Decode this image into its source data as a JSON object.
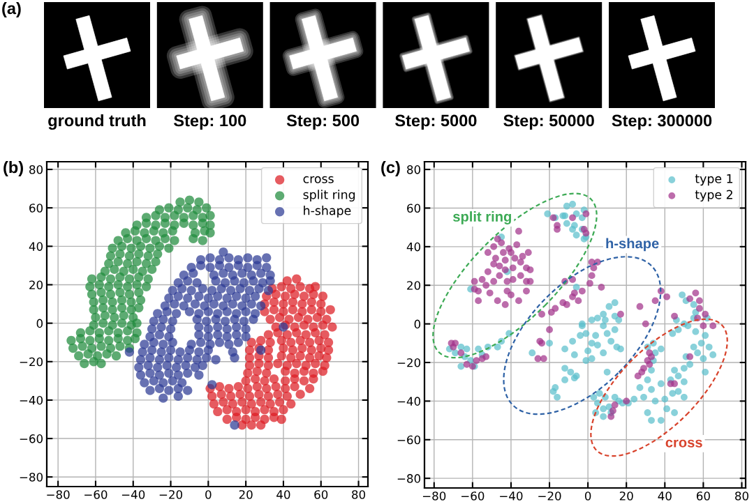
{
  "chart_data": [
    {
      "type": "other",
      "title": "(a)",
      "annotations": [
        "ground truth",
        "Step: 100",
        "Step: 500",
        "Step: 5000",
        "Step: 50000",
        "Step: 300000"
      ]
    },
    {
      "type": "scatter",
      "title": "(b)",
      "xlim": [
        -86,
        85
      ],
      "ylim": [
        -85,
        84
      ],
      "xticks": [
        -80,
        -60,
        -40,
        -20,
        0,
        20,
        40,
        60,
        80
      ],
      "yticks": [
        -80,
        -60,
        -40,
        -20,
        0,
        20,
        40,
        60,
        80
      ],
      "grid": true,
      "legend": "top right",
      "marker": "circle",
      "series": [
        {
          "name": "cross",
          "color": "#dd1c22",
          "x": [
            42,
            47,
            34,
            39,
            44,
            49,
            54,
            57,
            31,
            36,
            41,
            46,
            51,
            56,
            61,
            30,
            35,
            40,
            45,
            50,
            55,
            60,
            30,
            35,
            40,
            45,
            50,
            55,
            60,
            65,
            33,
            38,
            43,
            48,
            53,
            58,
            63,
            36,
            41,
            46,
            51,
            56,
            61,
            66,
            32,
            37,
            42,
            47,
            52,
            57,
            62,
            23,
            28,
            33,
            39,
            44,
            49,
            54,
            59,
            64,
            22,
            27,
            32,
            40,
            45,
            50,
            55,
            60,
            64,
            22,
            27,
            32,
            39,
            44,
            49,
            54,
            59,
            63,
            22,
            27,
            32,
            37,
            42,
            47,
            52,
            57,
            62,
            21,
            26,
            31,
            41,
            46,
            51,
            56,
            61,
            20,
            25,
            30,
            35,
            41,
            46,
            51,
            56,
            1,
            6,
            11,
            16,
            21,
            26,
            31,
            36,
            41,
            46,
            54,
            2,
            7,
            12,
            17,
            22,
            27,
            32,
            37,
            42,
            49,
            3,
            8,
            13,
            18,
            23,
            28,
            33,
            38,
            44,
            5,
            10,
            15,
            20,
            25,
            30,
            35,
            40,
            10,
            15,
            20,
            25,
            30,
            35,
            39,
            18,
            23,
            28
          ],
          "values": [
            22,
            23,
            18,
            19,
            18,
            19,
            18,
            19,
            14,
            15,
            14,
            15,
            14,
            15,
            14,
            10,
            11,
            10,
            11,
            10,
            11,
            10,
            6,
            7,
            6,
            7,
            6,
            7,
            6,
            7,
            2,
            3,
            2,
            3,
            2,
            3,
            2,
            -2,
            -1,
            -2,
            -1,
            -2,
            -1,
            -2,
            -6,
            -5,
            -6,
            -5,
            -6,
            -5,
            -6,
            -10,
            -9,
            -10,
            -9,
            -10,
            -9,
            -10,
            -9,
            -10,
            -14,
            -13,
            -14,
            -13,
            -14,
            -13,
            -14,
            -13,
            -14,
            -18,
            -17,
            -18,
            -17,
            -18,
            -17,
            -18,
            -17,
            -18,
            -22,
            -21,
            -22,
            -21,
            -22,
            -21,
            -22,
            -21,
            -22,
            -26,
            -25,
            -26,
            -25,
            -26,
            -25,
            -26,
            -25,
            -30,
            -29,
            -30,
            -29,
            -30,
            -29,
            -30,
            -29,
            -34,
            -33,
            -34,
            -33,
            -34,
            -33,
            -34,
            -33,
            -34,
            -33,
            -34,
            -38,
            -37,
            -38,
            -37,
            -38,
            -37,
            -38,
            -37,
            -38,
            -37,
            -42,
            -41,
            -42,
            -41,
            -42,
            -41,
            -42,
            -41,
            -42,
            -46,
            -45,
            -46,
            -45,
            -46,
            -45,
            -46,
            -45,
            -50,
            -49,
            -50,
            -49,
            -50,
            -49,
            -50,
            -53,
            -53,
            -53
          ]
        },
        {
          "name": "split ring",
          "color": "#1e8a3c",
          "x": [
            -15,
            -10,
            -5,
            -26,
            -21,
            -16,
            -11,
            -6,
            -1,
            -33,
            -28,
            -23,
            -18,
            -13,
            -8,
            -3,
            1,
            -38,
            -33,
            -28,
            -23,
            -18,
            -13,
            -8,
            -3,
            1,
            -44,
            -39,
            -34,
            -29,
            -24,
            -19,
            -7,
            -2,
            1,
            -48,
            -43,
            -38,
            -33,
            -28,
            -23,
            -18,
            -8,
            -3,
            -51,
            -46,
            -41,
            -36,
            -31,
            -26,
            -21,
            -52,
            -47,
            -42,
            -37,
            -32,
            -27,
            -53,
            -48,
            -43,
            -38,
            -33,
            -28,
            -55,
            -50,
            -45,
            -40,
            -35,
            -30,
            -62,
            -57,
            -52,
            -47,
            -42,
            -37,
            -32,
            -63,
            -58,
            -53,
            -48,
            -43,
            -38,
            -33,
            -62,
            -57,
            -52,
            -47,
            -42,
            -37,
            -61,
            -56,
            -51,
            -46,
            -41,
            -36,
            -61,
            -56,
            -51,
            -46,
            -41,
            -37,
            -60,
            -55,
            -50,
            -45,
            -40,
            -61,
            -56,
            -51,
            -46,
            -41,
            -38,
            -68,
            -63,
            -58,
            -53,
            -48,
            -43,
            -38,
            -73,
            -68,
            -63,
            -58,
            -53,
            -48,
            -43,
            -39,
            -72,
            -67,
            -62,
            -57,
            -52,
            -47,
            -42,
            -69,
            -64,
            -59,
            -54,
            -49,
            -66,
            -61,
            -57
          ],
          "values": [
            63,
            64,
            63,
            59,
            60,
            59,
            60,
            59,
            60,
            55,
            56,
            55,
            56,
            55,
            56,
            55,
            56,
            51,
            52,
            51,
            52,
            51,
            52,
            51,
            52,
            51,
            47,
            48,
            47,
            48,
            47,
            48,
            47,
            48,
            47,
            43,
            44,
            43,
            44,
            43,
            44,
            43,
            44,
            43,
            39,
            40,
            39,
            40,
            39,
            40,
            39,
            35,
            36,
            35,
            36,
            35,
            36,
            31,
            32,
            31,
            32,
            31,
            32,
            27,
            28,
            27,
            28,
            27,
            28,
            23,
            24,
            23,
            24,
            23,
            24,
            23,
            19,
            20,
            19,
            20,
            19,
            20,
            19,
            15,
            16,
            15,
            16,
            15,
            16,
            11,
            12,
            11,
            12,
            11,
            12,
            7,
            8,
            7,
            8,
            7,
            8,
            3,
            4,
            3,
            4,
            3,
            -1,
            0,
            -1,
            0,
            -1,
            0,
            -5,
            -4,
            -5,
            -4,
            -5,
            -4,
            -5,
            -9,
            -8,
            -9,
            -8,
            -9,
            -8,
            -9,
            -8,
            -13,
            -12,
            -13,
            -12,
            -13,
            -12,
            -13,
            -17,
            -16,
            -17,
            -16,
            -17,
            -21,
            -20,
            -21
          ]
        },
        {
          "name": "h-shape",
          "color": "#2c3a94",
          "x": [
            8,
            -4,
            1,
            6,
            11,
            16,
            21,
            26,
            31,
            -9,
            -4,
            1,
            6,
            11,
            16,
            21,
            26,
            31,
            -13,
            -8,
            3,
            8,
            13,
            18,
            23,
            28,
            33,
            -16,
            -11,
            -6,
            4,
            9,
            14,
            19,
            24,
            29,
            33,
            -19,
            -14,
            -9,
            -3,
            2,
            7,
            12,
            17,
            22,
            27,
            32,
            -21,
            -16,
            -11,
            -5,
            0,
            5,
            10,
            15,
            20,
            25,
            -23,
            -18,
            -13,
            -7,
            -2,
            3,
            8,
            13,
            18,
            23,
            28,
            -27,
            -22,
            -17,
            -10,
            -5,
            0,
            5,
            10,
            15,
            20,
            25,
            -29,
            -24,
            -19,
            -6,
            -1,
            4,
            9,
            14,
            19,
            24,
            -30,
            -25,
            -20,
            -5,
            0,
            5,
            10,
            15,
            20,
            -31,
            -26,
            -21,
            -5,
            0,
            5,
            10,
            15,
            20,
            -34,
            -29,
            -24,
            -19,
            -9,
            -4,
            1,
            6,
            11,
            16,
            -35,
            -30,
            -25,
            -20,
            -15,
            -10,
            -5,
            0,
            13,
            -36,
            -31,
            -26,
            -21,
            -16,
            -11,
            -6,
            -1,
            4,
            14,
            -37,
            -32,
            -27,
            -22,
            -17,
            -12,
            -7,
            -3,
            -36,
            -31,
            -26,
            -21,
            -16,
            -11,
            -5,
            -34,
            -29,
            -24,
            -19,
            -14,
            2,
            -31,
            -26,
            -21,
            -16,
            -11,
            -24,
            -16,
            -42,
            28,
            14,
            40
          ],
          "values": [
            37,
            33,
            34,
            33,
            34,
            33,
            34,
            33,
            34,
            29,
            30,
            29,
            30,
            29,
            30,
            29,
            30,
            29,
            25,
            26,
            25,
            26,
            25,
            26,
            25,
            26,
            25,
            21,
            22,
            21,
            22,
            21,
            22,
            21,
            22,
            21,
            22,
            17,
            18,
            17,
            18,
            17,
            18,
            17,
            18,
            17,
            18,
            17,
            13,
            14,
            13,
            14,
            13,
            14,
            13,
            14,
            13,
            14,
            9,
            10,
            9,
            10,
            9,
            10,
            9,
            10,
            9,
            10,
            9,
            5,
            6,
            5,
            6,
            5,
            6,
            5,
            6,
            5,
            6,
            5,
            1,
            2,
            1,
            2,
            1,
            2,
            1,
            2,
            1,
            2,
            -3,
            -2,
            -3,
            -2,
            -3,
            -2,
            -3,
            -2,
            -3,
            -7,
            -6,
            -7,
            -6,
            -7,
            -6,
            -7,
            -6,
            -7,
            -11,
            -10,
            -11,
            -10,
            -11,
            -10,
            -11,
            -10,
            -11,
            -10,
            -15,
            -14,
            -15,
            -14,
            -15,
            -14,
            -15,
            -14,
            -15,
            -19,
            -18,
            -19,
            -18,
            -19,
            -18,
            -19,
            -18,
            -19,
            -18,
            -23,
            -22,
            -23,
            -22,
            -23,
            -22,
            -23,
            -22,
            -27,
            -26,
            -27,
            -26,
            -27,
            -26,
            -27,
            -31,
            -30,
            -31,
            -30,
            -31,
            -32,
            -35,
            -34,
            -35,
            -34,
            -35,
            -39,
            -38,
            -15,
            -14,
            -53,
            -2
          ]
        }
      ]
    },
    {
      "type": "scatter",
      "title": "(c)",
      "xlim": [
        -85,
        82
      ],
      "ylim": [
        -85,
        84
      ],
      "xticks": [
        -80,
        -60,
        -40,
        -20,
        0,
        20,
        40,
        60,
        80
      ],
      "yticks": [
        -80,
        -60,
        -40,
        -20,
        0,
        20,
        40,
        60,
        80
      ],
      "grid": true,
      "legend": "top right",
      "marker": "circle",
      "series": [
        {
          "name": "type 1",
          "color": "#5bbfcc",
          "x": [
            -8,
            -11,
            -12,
            -6,
            -3,
            -2,
            -7,
            -3,
            -6,
            -2,
            -8,
            -13,
            -21,
            -17,
            -11,
            -1,
            -61,
            -45,
            -42,
            -72,
            -66,
            -64,
            -66,
            -59,
            -57,
            -52,
            -47,
            -41,
            -45,
            -63,
            -69,
            -61,
            -55,
            -29,
            -20,
            -6,
            -8,
            -12,
            -7,
            -3,
            -1,
            2,
            4,
            5,
            10,
            12,
            15,
            17,
            8,
            14,
            2,
            -1,
            -12,
            -9,
            -7,
            -12,
            -17,
            -18,
            -16,
            -6,
            10,
            14,
            11,
            8,
            5,
            14,
            16,
            -3,
            2,
            9,
            -4,
            0,
            8,
            3,
            5,
            8,
            4,
            9,
            14,
            16,
            18,
            12,
            8,
            11,
            6,
            31,
            34,
            35,
            33,
            31,
            27,
            33,
            29,
            24,
            21,
            35,
            31,
            33,
            38,
            40,
            41,
            45,
            44,
            47,
            50,
            38,
            43,
            47,
            50,
            45,
            50,
            53,
            51,
            55,
            59,
            61,
            63,
            65,
            60,
            57,
            61,
            56,
            52,
            47,
            44,
            38,
            34,
            49,
            51,
            55,
            56,
            55,
            62,
            50,
            46
          ],
          "values": [
            62,
            61,
            56,
            57,
            55,
            59,
            51,
            49,
            46,
            44,
            49,
            56,
            57,
            55,
            52,
            45,
            18,
            45,
            27,
            -13,
            -12,
            -17,
            -22,
            -22,
            -13,
            -12,
            -12,
            -5,
            -9,
            -13,
            -15,
            -19,
            -16,
            -15,
            -10,
            19,
            -9,
            -13,
            -16,
            -1,
            -5,
            -10,
            -6,
            -11,
            -5,
            -9,
            -12,
            -13,
            -1,
            -3,
            -18,
            -19,
            -23,
            -25,
            -28,
            -29,
            -33,
            -35,
            -38,
            -27,
            -25,
            11,
            9,
            5,
            3,
            4,
            2,
            0,
            2,
            2,
            -6,
            -14,
            -15,
            -38,
            -41,
            -44,
            -46,
            -38,
            -38,
            -40,
            -41,
            -46,
            -48,
            -43,
            -36,
            -12,
            -10,
            -15,
            -24,
            -29,
            -33,
            -34,
            -38,
            -39,
            -41,
            -40,
            -46,
            -50,
            -50,
            -39,
            -44,
            -46,
            -36,
            -35,
            -38,
            -31,
            -29,
            -27,
            -30,
            -24,
            -23,
            -21,
            -17,
            -12,
            -10,
            -6,
            -12,
            -16,
            -18,
            -15,
            -25,
            -4,
            -1,
            -3,
            -5,
            -13,
            -19,
            15,
            12,
            10,
            6,
            3,
            3,
            0,
            2
          ]
        },
        {
          "name": "type 2",
          "color": "#a2338b",
          "x": [
            -18,
            -16,
            -16,
            -8,
            -1,
            -2,
            -1,
            -36,
            -47,
            -45,
            -49,
            -41,
            -37,
            -52,
            -48,
            -43,
            -40,
            -34,
            -31,
            -35,
            -32,
            -30,
            -39,
            -43,
            -49,
            -59,
            -55,
            -53,
            -49,
            -46,
            -42,
            -39,
            -35,
            -32,
            -30,
            -57,
            -59,
            -57,
            -51,
            -47,
            -43,
            -40,
            -36,
            -32,
            -42,
            -52,
            -46,
            -38,
            -44,
            2,
            5,
            3,
            2,
            7,
            1,
            -3,
            -7,
            -8,
            -5,
            -11,
            -13,
            -8,
            -12,
            -17,
            -19,
            -24,
            -20,
            -25,
            -24,
            -26,
            -23,
            38,
            41,
            27,
            35,
            30,
            17,
            56,
            53,
            58,
            58,
            61,
            57,
            60,
            65,
            45,
            -69,
            -70,
            -66,
            -63,
            -60,
            -58,
            -55,
            -53,
            -71,
            14,
            13,
            12,
            20,
            33,
            32,
            29,
            28,
            26,
            32,
            31,
            43,
            45,
            53
          ],
          "values": [
            55,
            51,
            49,
            55,
            57,
            49,
            47,
            48,
            44,
            42,
            40,
            39,
            41,
            37,
            34,
            33,
            37,
            35,
            37,
            32,
            29,
            28,
            29,
            28,
            31,
            22,
            23,
            20,
            22,
            25,
            22,
            23,
            25,
            22,
            22,
            17,
            18,
            12,
            16,
            12,
            10,
            15,
            12,
            17,
            17,
            27,
            30,
            34,
            37,
            32,
            32,
            29,
            25,
            19,
            21,
            17,
            16,
            14,
            12,
            10,
            11,
            23,
            22,
            8,
            6,
            5,
            -3,
            -9,
            -10,
            -18,
            -18,
            17,
            14,
            9,
            12,
            0,
            5,
            16,
            13,
            12,
            8,
            5,
            3,
            -1,
            -1,
            4,
            -10,
            -12,
            -15,
            -21,
            -22,
            -19,
            -18,
            -17,
            -10,
            -42,
            -45,
            -48,
            -40,
            -17,
            -21,
            -23,
            -25,
            -27,
            -15,
            -19,
            -31,
            -31,
            -17
          ]
        }
      ],
      "annotations": [
        "split ring",
        "h-shape",
        "cross"
      ]
    }
  ]
}
